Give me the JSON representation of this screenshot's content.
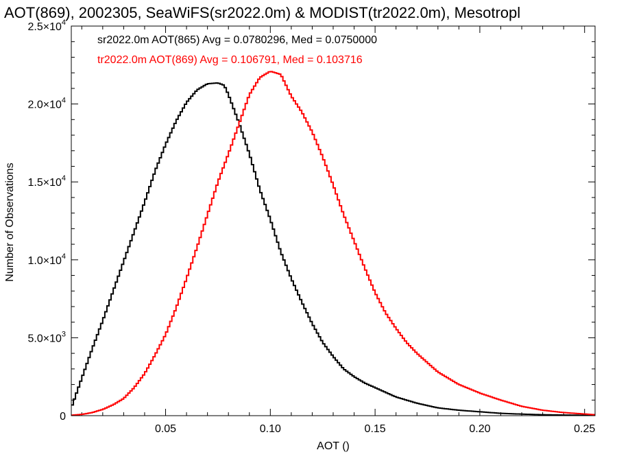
{
  "chart_data": {
    "type": "line",
    "title": "AOT(869), 2002305, SeaWiFS(sr2022.0m) & MODIST(tr2022.0m), Mesotropl",
    "xlabel": "AOT ()",
    "ylabel": "Number of Observations",
    "xlim": [
      0.005,
      0.255
    ],
    "ylim": [
      0,
      25000
    ],
    "x_ticks": [
      0.05,
      0.1,
      0.15,
      0.2,
      0.25
    ],
    "x_tick_labels": [
      "0.05",
      "0.10",
      "0.15",
      "0.20",
      "0.25"
    ],
    "y_ticks": [
      0,
      5000,
      10000,
      15000,
      20000,
      25000
    ],
    "y_tick_labels": [
      {
        "mantissa": "0",
        "exp": ""
      },
      {
        "mantissa": "5.0×10",
        "exp": "3"
      },
      {
        "mantissa": "1.0×10",
        "exp": "4"
      },
      {
        "mantissa": "1.5×10",
        "exp": "4"
      },
      {
        "mantissa": "2.0×10",
        "exp": "4"
      },
      {
        "mantissa": "2.5×10",
        "exp": "4"
      }
    ],
    "grid": false,
    "legend": "top-left",
    "series": [
      {
        "label": "sr2022.0m AOT(865) Avg = 0.0780296, Med = 0.0750000",
        "color": "#000000",
        "x": [
          0.005,
          0.01,
          0.015,
          0.02,
          0.025,
          0.03,
          0.035,
          0.04,
          0.045,
          0.05,
          0.055,
          0.06,
          0.065,
          0.07,
          0.075,
          0.078,
          0.08,
          0.085,
          0.09,
          0.095,
          0.1,
          0.105,
          0.11,
          0.115,
          0.12,
          0.125,
          0.13,
          0.135,
          0.14,
          0.145,
          0.15,
          0.16,
          0.17,
          0.18,
          0.19,
          0.2,
          0.21,
          0.22,
          0.23,
          0.24,
          0.255
        ],
        "y": [
          500,
          2400,
          4300,
          6100,
          8000,
          9900,
          11800,
          13700,
          15700,
          17400,
          18900,
          20100,
          20900,
          21300,
          21350,
          21200,
          20600,
          18800,
          16800,
          14500,
          12600,
          10500,
          8800,
          7300,
          5900,
          4700,
          3800,
          3000,
          2500,
          2100,
          1800,
          1200,
          800,
          500,
          350,
          250,
          150,
          100,
          60,
          40,
          20
        ]
      },
      {
        "label": "tr2022.0m AOT(869) Avg = 0.106791, Med = 0.103716",
        "color": "#ff0000",
        "x": [
          0.005,
          0.01,
          0.015,
          0.02,
          0.025,
          0.03,
          0.035,
          0.04,
          0.045,
          0.05,
          0.055,
          0.06,
          0.065,
          0.07,
          0.075,
          0.08,
          0.085,
          0.09,
          0.095,
          0.1,
          0.105,
          0.11,
          0.115,
          0.12,
          0.125,
          0.13,
          0.135,
          0.14,
          0.145,
          0.15,
          0.155,
          0.16,
          0.165,
          0.17,
          0.175,
          0.18,
          0.19,
          0.2,
          0.21,
          0.22,
          0.23,
          0.24,
          0.255
        ],
        "y": [
          30,
          80,
          200,
          400,
          700,
          1100,
          1800,
          2700,
          3900,
          5200,
          6900,
          8800,
          10800,
          12900,
          15000,
          16800,
          18700,
          20600,
          21700,
          22100,
          21900,
          20500,
          19500,
          18200,
          16600,
          14800,
          12900,
          11200,
          9500,
          7900,
          6600,
          5600,
          4700,
          4000,
          3400,
          2800,
          2000,
          1450,
          1000,
          600,
          350,
          200,
          60
        ]
      }
    ]
  }
}
